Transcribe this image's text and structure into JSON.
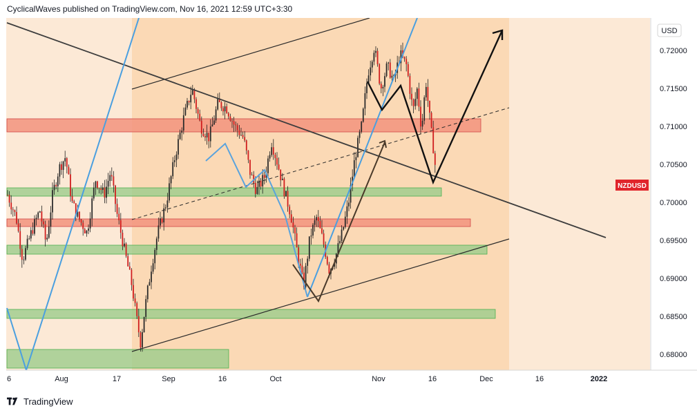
{
  "header": {
    "attribution": "CyclicalWaves published on TradingView.com, Nov 16, 2021 12:59 UTC+3:30"
  },
  "footer": {
    "brand": "TradingView",
    "logo_icon": "tradingview-logo-icon"
  },
  "colors": {
    "background": "#fce9d6",
    "shaded_region": "#fbd9b5",
    "candle": "#d01e1e",
    "support_zone": "#9ccc8c",
    "resistance_zone": "#f2937e",
    "trendline": "#3d3d3d",
    "blue_line": "#4a9fe0",
    "price_tag": "#e0242b"
  },
  "chart_data": {
    "type": "candlestick",
    "symbol": "NZDUSD",
    "currency": "USD",
    "price_tag": "NZDUSD",
    "y_ticks": [
      "0.72000",
      "0.71500",
      "0.71000",
      "0.70500",
      "0.70000",
      "0.69500",
      "0.69000",
      "0.68500",
      "0.68000"
    ],
    "x_ticks": [
      "6",
      "Aug",
      "17",
      "Sep",
      "16",
      "Oct",
      "Nov",
      "16",
      "Dec",
      "16",
      "2022"
    ],
    "ylim": [
      0.6775,
      0.7243
    ],
    "close_path": [
      [
        0,
        0.701
      ],
      [
        0.02,
        0.698
      ],
      [
        0.035,
        0.6925
      ],
      [
        0.055,
        0.696
      ],
      [
        0.075,
        0.699
      ],
      [
        0.09,
        0.6945
      ],
      [
        0.105,
        0.701
      ],
      [
        0.12,
        0.7045
      ],
      [
        0.135,
        0.706
      ],
      [
        0.15,
        0.7
      ],
      [
        0.165,
        0.698
      ],
      [
        0.185,
        0.696
      ],
      [
        0.205,
        0.703
      ],
      [
        0.225,
        0.701
      ],
      [
        0.24,
        0.704
      ],
      [
        0.255,
        0.6985
      ],
      [
        0.275,
        0.693
      ],
      [
        0.29,
        0.689
      ],
      [
        0.3,
        0.685
      ],
      [
        0.31,
        0.6815
      ],
      [
        0.32,
        0.686
      ],
      [
        0.335,
        0.6915
      ],
      [
        0.35,
        0.696
      ],
      [
        0.37,
        0.7
      ],
      [
        0.39,
        0.706
      ],
      [
        0.41,
        0.711
      ],
      [
        0.43,
        0.715
      ],
      [
        0.45,
        0.71
      ],
      [
        0.47,
        0.7085
      ],
      [
        0.49,
        0.713
      ],
      [
        0.51,
        0.7125
      ],
      [
        0.53,
        0.71
      ],
      [
        0.55,
        0.7085
      ],
      [
        0.565,
        0.704
      ],
      [
        0.58,
        0.7015
      ],
      [
        0.6,
        0.7035
      ],
      [
        0.615,
        0.708
      ],
      [
        0.63,
        0.705
      ],
      [
        0.645,
        0.7015
      ],
      [
        0.66,
        0.6985
      ],
      [
        0.675,
        0.6935
      ],
      [
        0.69,
        0.689
      ],
      [
        0.705,
        0.6955
      ],
      [
        0.72,
        0.698
      ],
      [
        0.735,
        0.695
      ],
      [
        0.75,
        0.691
      ],
      [
        0.765,
        0.693
      ],
      [
        0.78,
        0.696
      ],
      [
        0.795,
        0.7
      ],
      [
        0.81,
        0.706
      ],
      [
        0.825,
        0.71
      ],
      [
        0.84,
        0.717
      ],
      [
        0.855,
        0.7205
      ],
      [
        0.87,
        0.715
      ],
      [
        0.885,
        0.718
      ],
      [
        0.9,
        0.716
      ],
      [
        0.915,
        0.7195
      ],
      [
        0.93,
        0.718
      ],
      [
        0.945,
        0.712
      ],
      [
        0.955,
        0.715
      ],
      [
        0.965,
        0.7095
      ],
      [
        0.975,
        0.716
      ],
      [
        0.985,
        0.7105
      ],
      [
        0.995,
        0.706
      ],
      [
        1.0,
        0.7025
      ]
    ],
    "zones": [
      {
        "type": "resistance",
        "top": 0.711,
        "bottom": 0.7093
      },
      {
        "type": "support",
        "top": 0.7019,
        "bottom": 0.7008
      },
      {
        "type": "resistance",
        "top": 0.6978,
        "bottom": 0.6968
      },
      {
        "type": "support",
        "top": 0.6944,
        "bottom": 0.6932
      },
      {
        "type": "support",
        "top": 0.6858,
        "bottom": 0.6847
      },
      {
        "type": "support",
        "top": 0.6808,
        "bottom": 0.6783
      }
    ],
    "grid": false
  }
}
